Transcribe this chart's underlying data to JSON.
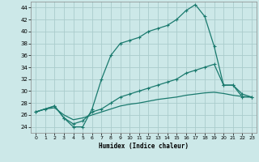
{
  "xlabel": "Humidex (Indice chaleur)",
  "bg_color": "#cce8e8",
  "line_color": "#1a7a6e",
  "grid_color": "#aacccc",
  "xlim": [
    -0.5,
    23.5
  ],
  "ylim": [
    23.0,
    45.0
  ],
  "xticks": [
    0,
    1,
    2,
    3,
    4,
    5,
    6,
    7,
    8,
    9,
    10,
    11,
    12,
    13,
    14,
    15,
    16,
    17,
    18,
    19,
    20,
    21,
    22,
    23
  ],
  "yticks": [
    24,
    26,
    28,
    30,
    32,
    34,
    36,
    38,
    40,
    42,
    44
  ],
  "line1_x": [
    0,
    1,
    2,
    3,
    4,
    5,
    6,
    7,
    8,
    9,
    10,
    11,
    12,
    13,
    14,
    15,
    16,
    17,
    18,
    19,
    20,
    21,
    22,
    23
  ],
  "line1_y": [
    26.5,
    27.0,
    27.5,
    25.5,
    24.0,
    24.0,
    27.0,
    32.0,
    36.0,
    38.0,
    38.5,
    39.0,
    40.0,
    40.5,
    41.0,
    42.0,
    43.5,
    44.5,
    42.5,
    37.5,
    31.0,
    31.0,
    29.5,
    29.0
  ],
  "line2_x": [
    0,
    2,
    3,
    4,
    5,
    6,
    7,
    8,
    9,
    10,
    11,
    12,
    13,
    14,
    15,
    16,
    17,
    18,
    19,
    20,
    21,
    22,
    23
  ],
  "line2_y": [
    26.5,
    27.5,
    25.5,
    24.5,
    25.0,
    26.5,
    27.0,
    28.0,
    29.0,
    29.5,
    30.0,
    30.5,
    31.0,
    31.5,
    32.0,
    33.0,
    33.5,
    34.0,
    34.5,
    31.0,
    31.0,
    29.0,
    29.0
  ],
  "line3_x": [
    0,
    1,
    2,
    3,
    4,
    5,
    6,
    7,
    8,
    9,
    10,
    11,
    12,
    13,
    14,
    15,
    16,
    17,
    18,
    19,
    20,
    21,
    22,
    23
  ],
  "line3_y": [
    26.5,
    27.0,
    27.2,
    26.0,
    25.2,
    25.5,
    26.0,
    26.5,
    27.0,
    27.5,
    27.8,
    28.0,
    28.3,
    28.6,
    28.8,
    29.0,
    29.3,
    29.5,
    29.7,
    29.8,
    29.6,
    29.3,
    29.1,
    29.0
  ]
}
